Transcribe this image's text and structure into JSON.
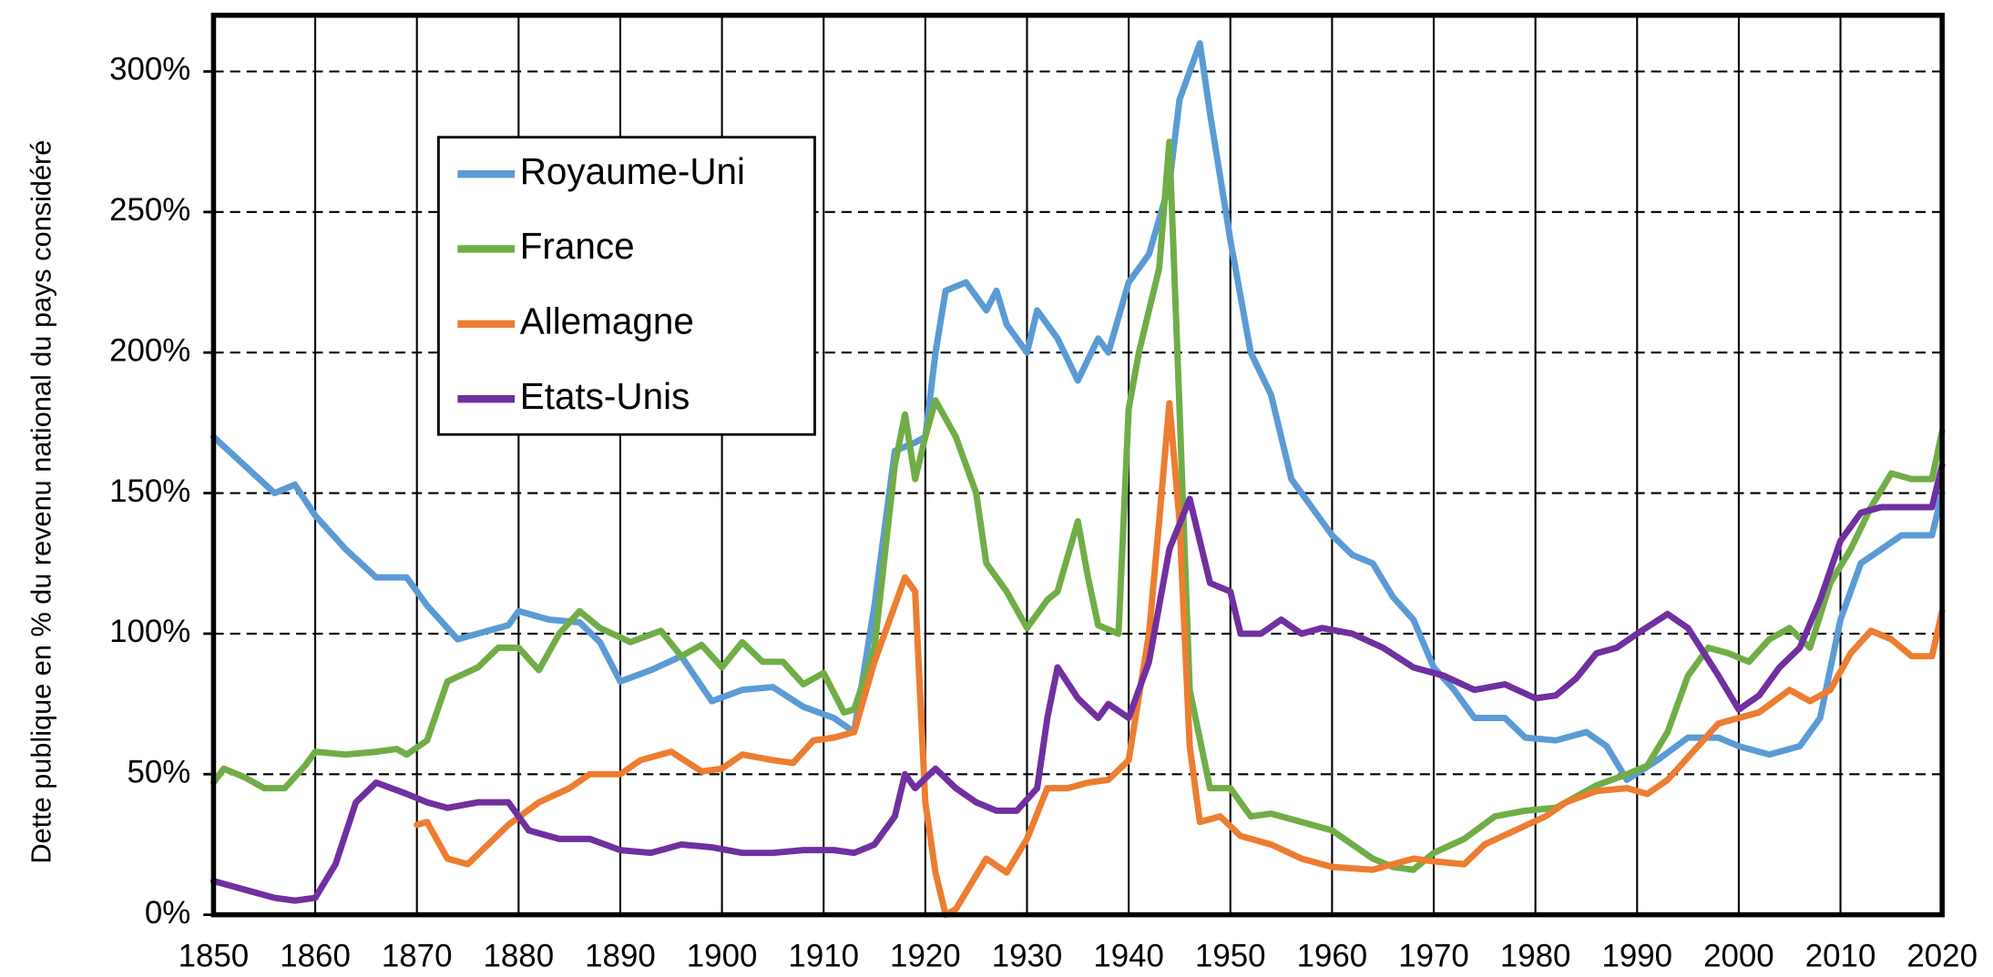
{
  "chart_data": {
    "type": "line",
    "ylabel": "Dette publique en % du revenu national du pays considéré",
    "xlim": [
      1850,
      2020
    ],
    "xticks": [
      1850,
      1860,
      1870,
      1880,
      1890,
      1900,
      1910,
      1920,
      1930,
      1940,
      1950,
      1960,
      1970,
      1980,
      1990,
      2000,
      2010,
      2020
    ],
    "ylim": [
      0,
      320
    ],
    "yticks": [
      {
        "value": 0,
        "label": "0%"
      },
      {
        "value": 50,
        "label": "50%"
      },
      {
        "value": 100,
        "label": "100%"
      },
      {
        "value": 150,
        "label": "150%"
      },
      {
        "value": 200,
        "label": "200%"
      },
      {
        "value": 250,
        "label": "250%"
      },
      {
        "value": 300,
        "label": "300%"
      }
    ],
    "grid": true,
    "legend": "upper left",
    "series": [
      {
        "name": "Royaume-Uni",
        "color": "#5b9bd5",
        "x": [
          1850,
          1853,
          1856,
          1858,
          1860,
          1863,
          1866,
          1869,
          1871,
          1874,
          1877,
          1879,
          1880,
          1883,
          1886,
          1888,
          1890,
          1893,
          1896,
          1899,
          1902,
          1905,
          1908,
          1911,
          1913,
          1915,
          1917,
          1919,
          1920,
          1921,
          1922,
          1924,
          1926,
          1927,
          1928,
          1930,
          1931,
          1933,
          1935,
          1937,
          1938,
          1940,
          1942,
          1944,
          1945,
          1947,
          1948,
          1950,
          1952,
          1954,
          1956,
          1958,
          1960,
          1962,
          1964,
          1966,
          1968,
          1970,
          1972,
          1974,
          1977,
          1979,
          1982,
          1985,
          1987,
          1989,
          1992,
          1995,
          1998,
          2000,
          2003,
          2006,
          2008,
          2010,
          2012,
          2014,
          2016,
          2019,
          2020
        ],
        "values": [
          170,
          160,
          150,
          153,
          142,
          130,
          120,
          120,
          110,
          98,
          101,
          103,
          108,
          105,
          104,
          97,
          83,
          87,
          92,
          76,
          80,
          81,
          74,
          70,
          65,
          110,
          165,
          168,
          170,
          200,
          222,
          225,
          215,
          222,
          210,
          200,
          215,
          205,
          190,
          205,
          200,
          225,
          235,
          260,
          290,
          310,
          285,
          240,
          200,
          185,
          155,
          145,
          135,
          128,
          125,
          113,
          105,
          88,
          80,
          70,
          70,
          63,
          62,
          65,
          60,
          48,
          55,
          63,
          63,
          60,
          57,
          60,
          70,
          105,
          125,
          130,
          135,
          135,
          150
        ]
      },
      {
        "name": "France",
        "color": "#70ad47",
        "x": [
          1850,
          1851,
          1853,
          1855,
          1857,
          1859,
          1860,
          1863,
          1866,
          1868,
          1869,
          1871,
          1873,
          1876,
          1878,
          1880,
          1882,
          1884,
          1886,
          1888,
          1891,
          1894,
          1896,
          1898,
          1900,
          1902,
          1904,
          1906,
          1908,
          1910,
          1912,
          1913,
          1915,
          1917,
          1918,
          1919,
          1920,
          1921,
          1923,
          1925,
          1926,
          1928,
          1930,
          1932,
          1933,
          1935,
          1936,
          1937,
          1939,
          1940,
          1941,
          1943,
          1944,
          1945,
          1946,
          1948,
          1950,
          1952,
          1954,
          1957,
          1960,
          1962,
          1964,
          1966,
          1968,
          1970,
          1973,
          1976,
          1979,
          1982,
          1986,
          1989,
          1991,
          1993,
          1995,
          1997,
          1999,
          2001,
          2003,
          2005,
          2007,
          2009,
          2011,
          2013,
          2015,
          2017,
          2019,
          2020
        ],
        "values": [
          47,
          52,
          49,
          45,
          45,
          53,
          58,
          57,
          58,
          59,
          57,
          62,
          83,
          88,
          95,
          95,
          87,
          100,
          108,
          102,
          97,
          101,
          92,
          96,
          88,
          97,
          90,
          90,
          82,
          86,
          72,
          73,
          95,
          160,
          178,
          155,
          170,
          183,
          170,
          150,
          125,
          115,
          102,
          112,
          115,
          140,
          120,
          103,
          100,
          180,
          200,
          230,
          275,
          180,
          80,
          45,
          45,
          35,
          36,
          33,
          30,
          25,
          20,
          17,
          16,
          22,
          27,
          35,
          37,
          38,
          46,
          50,
          53,
          65,
          85,
          95,
          93,
          90,
          98,
          102,
          95,
          118,
          130,
          145,
          157,
          155,
          155,
          172
        ]
      },
      {
        "name": "Allemagne",
        "color": "#ed7d31",
        "x": [
          1870,
          1871,
          1873,
          1875,
          1877,
          1879,
          1882,
          1885,
          1887,
          1890,
          1892,
          1895,
          1898,
          1900,
          1902,
          1905,
          1907,
          1909,
          1911,
          1913,
          1915,
          1917,
          1918,
          1919,
          1920,
          1921,
          1922,
          1923,
          1924,
          1926,
          1928,
          1930,
          1932,
          1934,
          1936,
          1938,
          1940,
          1942,
          1943,
          1944,
          1945,
          1946,
          1947,
          1949,
          1951,
          1954,
          1957,
          1960,
          1964,
          1968,
          1970,
          1973,
          1975,
          1978,
          1981,
          1983,
          1986,
          1989,
          1991,
          1993,
          1996,
          1998,
          2000,
          2002,
          2005,
          2007,
          2009,
          2011,
          2013,
          2015,
          2017,
          2019,
          2020
        ],
        "values": [
          32,
          33,
          20,
          18,
          25,
          32,
          40,
          45,
          50,
          50,
          55,
          58,
          51,
          52,
          57,
          55,
          54,
          62,
          63,
          65,
          90,
          110,
          120,
          115,
          40,
          15,
          0,
          2,
          8,
          20,
          15,
          27,
          45,
          45,
          47,
          48,
          55,
          100,
          140,
          182,
          140,
          60,
          33,
          35,
          28,
          25,
          20,
          17,
          16,
          20,
          19,
          18,
          25,
          30,
          35,
          40,
          44,
          45,
          43,
          48,
          60,
          68,
          70,
          72,
          80,
          76,
          80,
          93,
          101,
          98,
          92,
          92,
          108
        ]
      },
      {
        "name": "Etats-Unis",
        "color": "#7030a0",
        "x": [
          1850,
          1853,
          1856,
          1858,
          1860,
          1862,
          1864,
          1866,
          1869,
          1871,
          1873,
          1876,
          1879,
          1881,
          1884,
          1887,
          1890,
          1893,
          1896,
          1899,
          1902,
          1905,
          1908,
          1911,
          1913,
          1915,
          1917,
          1918,
          1919,
          1921,
          1923,
          1925,
          1927,
          1929,
          1931,
          1932,
          1933,
          1935,
          1937,
          1938,
          1940,
          1942,
          1944,
          1946,
          1948,
          1950,
          1951,
          1953,
          1955,
          1957,
          1959,
          1962,
          1965,
          1968,
          1971,
          1974,
          1977,
          1980,
          1982,
          1984,
          1986,
          1988,
          1990,
          1993,
          1995,
          1998,
          2000,
          2002,
          2004,
          2006,
          2008,
          2010,
          2012,
          2014,
          2016,
          2019,
          2020
        ],
        "values": [
          12,
          9,
          6,
          5,
          6,
          18,
          40,
          47,
          43,
          40,
          38,
          40,
          40,
          30,
          27,
          27,
          23,
          22,
          25,
          24,
          22,
          22,
          23,
          23,
          22,
          25,
          35,
          50,
          45,
          52,
          45,
          40,
          37,
          37,
          45,
          70,
          88,
          77,
          70,
          75,
          70,
          90,
          130,
          148,
          118,
          115,
          100,
          100,
          105,
          100,
          102,
          100,
          95,
          88,
          85,
          80,
          82,
          77,
          78,
          84,
          93,
          95,
          100,
          107,
          102,
          85,
          73,
          78,
          88,
          95,
          112,
          133,
          143,
          145,
          145,
          145,
          160
        ]
      }
    ]
  }
}
